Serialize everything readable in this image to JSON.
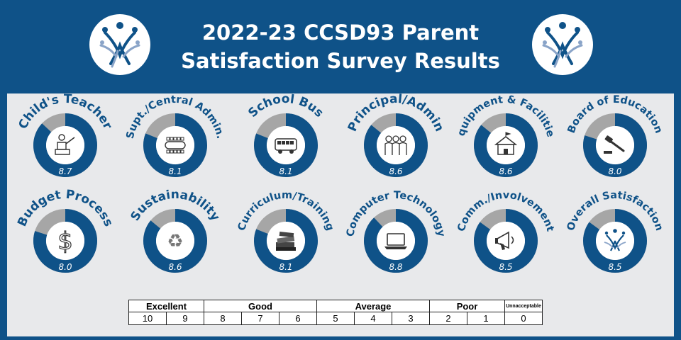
{
  "header": {
    "title_line1": "2022-23 CCSD93 Parent",
    "title_line2": "Satisfaction Survey Results"
  },
  "colors": {
    "header_bg": "#0f5288",
    "panel_bg": "#e8e9eb",
    "ring_fill": "#0f5288",
    "ring_remainder": "#a6a6a6"
  },
  "chart_data": {
    "type": "pie",
    "scale_max": 10,
    "items": [
      {
        "label": "Child's Teacher",
        "value": 8.7,
        "icon": "teacher-icon"
      },
      {
        "label": "Supt./Central Admin.",
        "value": 8.1,
        "icon": "conference-table-icon"
      },
      {
        "label": "School Bus",
        "value": 8.1,
        "icon": "bus-icon"
      },
      {
        "label": "Principal/Admin",
        "value": 8.6,
        "icon": "people-icon"
      },
      {
        "label": "Equipment & Facilities",
        "value": 8.6,
        "icon": "building-icon"
      },
      {
        "label": "Board of Education",
        "value": 8.0,
        "icon": "gavel-icon"
      },
      {
        "label": "Budget Process",
        "value": 8.0,
        "icon": "dollar-icon"
      },
      {
        "label": "Sustainability",
        "value": 8.6,
        "icon": "recycle-icon"
      },
      {
        "label": "Curriculum/Training",
        "value": 8.1,
        "icon": "books-icon"
      },
      {
        "label": "Computer Technology",
        "value": 8.8,
        "icon": "laptop-icon"
      },
      {
        "label": "Comm./Involvement",
        "value": 8.5,
        "icon": "megaphone-icon"
      },
      {
        "label": "Overall Satisfaction",
        "value": 8.5,
        "icon": "ccsd93-logo-icon"
      }
    ]
  },
  "legend": {
    "categories": [
      {
        "label": "Excellent",
        "span": 2
      },
      {
        "label": "Good",
        "span": 3
      },
      {
        "label": "Average",
        "span": 3
      },
      {
        "label": "Poor",
        "span": 2
      },
      {
        "label": "Unnacceptable",
        "span": 1
      }
    ],
    "numbers": [
      "10",
      "9",
      "8",
      "7",
      "6",
      "5",
      "4",
      "3",
      "2",
      "1",
      "0"
    ]
  }
}
